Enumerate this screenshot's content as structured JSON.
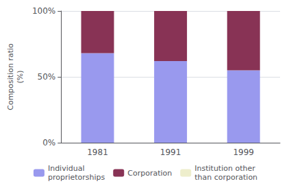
{
  "chart_data": {
    "type": "bar",
    "categories": [
      "1981",
      "1991",
      "1999"
    ],
    "series": [
      {
        "name": "Individual\nproprietorships",
        "color": "#9999ee",
        "values": [
          68.0,
          62.0,
          55.0
        ]
      },
      {
        "name": "Corporation",
        "color": "#883355",
        "values": [
          32.0,
          38.0,
          45.0
        ]
      },
      {
        "name": "Institution other\nthan corporation",
        "color": "#eeeecc",
        "values": [
          0.0,
          0.0,
          0.0
        ]
      }
    ],
    "ylabel": "Composition ratio\n(%)",
    "ylim": [
      0,
      100
    ],
    "yticks": [
      {
        "value": 0,
        "label": "0%"
      },
      {
        "value": 50,
        "label": "50%"
      },
      {
        "value": 100,
        "label": "100%"
      }
    ],
    "stacked": true,
    "grid": true,
    "legend": "bottom"
  }
}
